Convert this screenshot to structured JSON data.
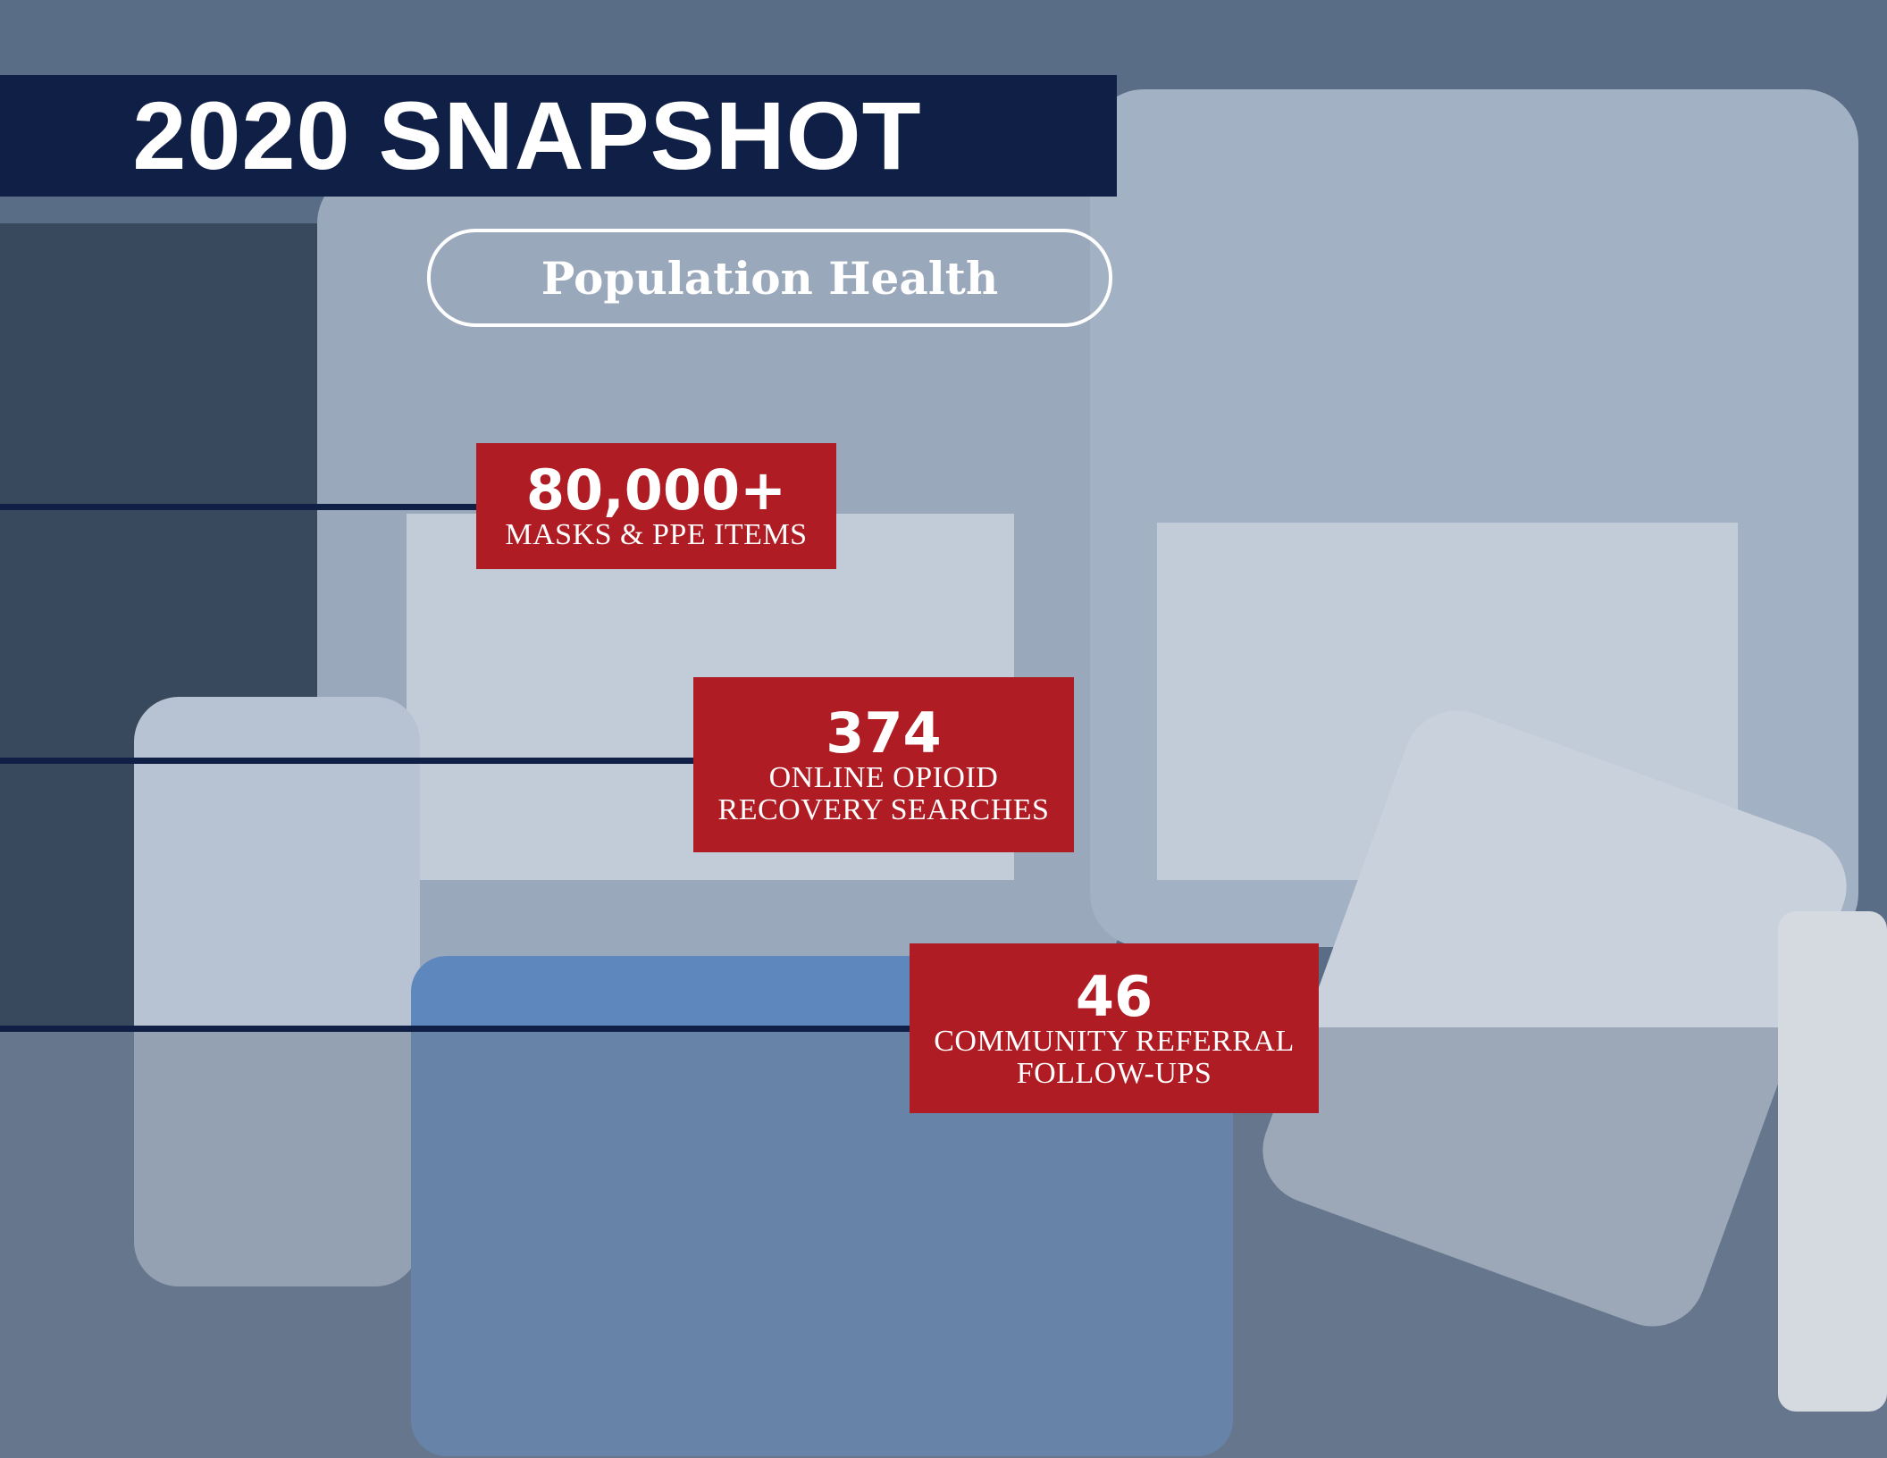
{
  "header": {
    "title": "2020 SNAPSHOT",
    "subtitle": "Population Health"
  },
  "stats": [
    {
      "value": "80,000+",
      "label_lines": [
        "MASKS & PPE ITEMS"
      ]
    },
    {
      "value": "374",
      "label_lines": [
        "ONLINE OPIOID",
        "RECOVERY SEARCHES"
      ]
    },
    {
      "value": "46",
      "label_lines": [
        "COMMUNITY REFERRAL",
        "FOLLOW-UPS"
      ]
    }
  ]
}
